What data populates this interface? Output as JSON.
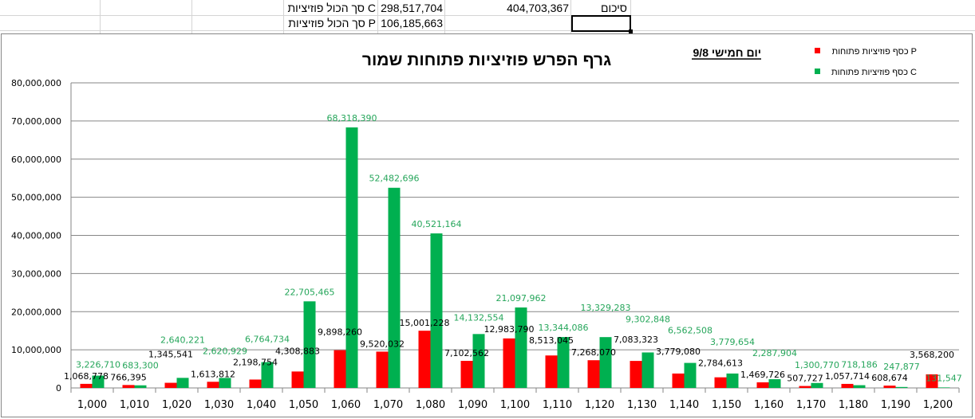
{
  "sheet": {
    "c_total_label": "סך הכול פוזיציות C",
    "c_total_value": "298,517,704",
    "p_total_label": "סך הכול פוזיציות P",
    "p_total_value": "106,185,663",
    "sum_label": "סיכום",
    "sum_value": "404,703,367"
  },
  "colors": {
    "p": "#ff0000",
    "c": "#00b050",
    "c_label": "#26a65b"
  },
  "chart_data": {
    "type": "bar",
    "title": "גרף הפרש פוזיציות פתוחות שמור",
    "annotation": "יום חמישי 9/8",
    "ylim": [
      0,
      80000000
    ],
    "yticks": [
      "0",
      "10,000,000",
      "20,000,000",
      "30,000,000",
      "40,000,000",
      "50,000,000",
      "60,000,000",
      "70,000,000",
      "80,000,000"
    ],
    "legend_position": "top-right",
    "categories": [
      "1,000",
      "1,010",
      "1,020",
      "1,030",
      "1,040",
      "1,050",
      "1,060",
      "1,070",
      "1,080",
      "1,090",
      "1,100",
      "1,110",
      "1,120",
      "1,130",
      "1,140",
      "1,150",
      "1,160",
      "1,170",
      "1,180",
      "1,190",
      "1,200"
    ],
    "series": [
      {
        "name": "כסף פוזיציות פתוחות P",
        "values": [
          1068778,
          766395,
          1345541,
          1613812,
          2198754,
          4308883,
          9898260,
          9520032,
          15001228,
          7102562,
          12983790,
          8513045,
          7268070,
          7083323,
          3779080,
          2784613,
          1469726,
          507727,
          1057714,
          608674,
          3568200
        ],
        "labels": [
          "1,068,778",
          "766,395",
          "1,345,541",
          "1,613,812",
          "2,198,754",
          "4,308,883",
          "9,898,260",
          "9,520,032",
          "15,001,228",
          "7,102,562",
          "12,983,790",
          "8,513,045",
          "7,268,070",
          "7,083,323",
          "3,779,080",
          "2,784,613",
          "1,469,726",
          "507,727",
          "1,057,714",
          "608,674",
          "3,568,200"
        ]
      },
      {
        "name": "כסף פוזיציות פתוחות C",
        "values": [
          3226710,
          683300,
          2640221,
          2620929,
          6764734,
          22705465,
          68318390,
          52482696,
          40521164,
          14132554,
          21097962,
          13344086,
          13329283,
          9302848,
          6562508,
          3779654,
          2287904,
          1300770,
          718186,
          247877,
          131547
        ],
        "labels": [
          "3,226,710",
          "683,300",
          "2,640,221",
          "2,620,929",
          "6,764,734",
          "22,705,465",
          "68,318,390",
          "52,482,696",
          "40,521,164",
          "14,132,554",
          "21,097,962",
          "13,344,086",
          "13,329,283",
          "9,302,848",
          "6,562,508",
          "3,779,654",
          "2,287,904",
          "1,300,770",
          "718,186",
          "247,877",
          "131,547"
        ]
      }
    ]
  }
}
